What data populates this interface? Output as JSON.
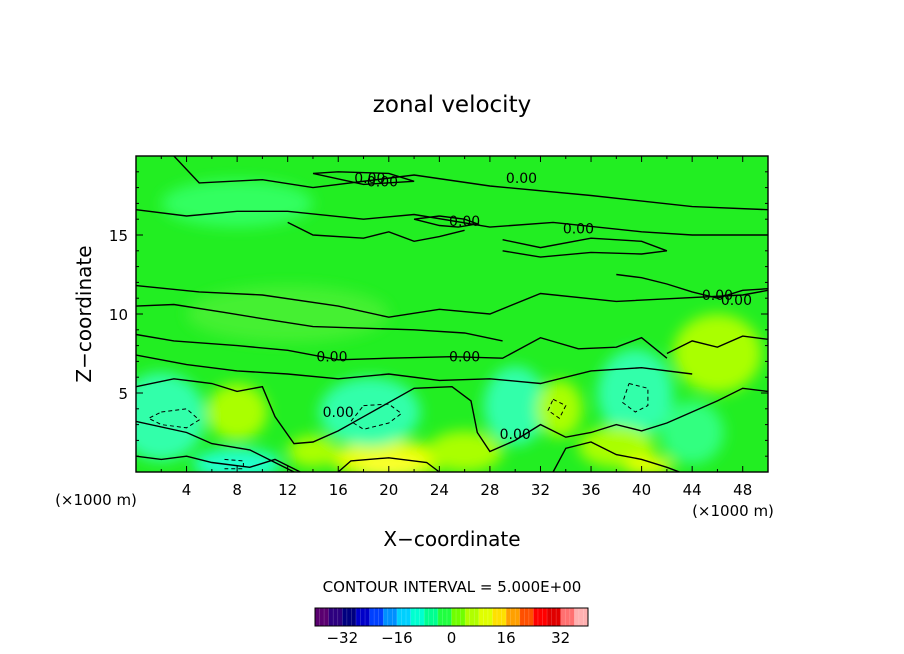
{
  "chart_data": {
    "type": "heatmap",
    "title": "zonal velocity",
    "xlabel": "X−coordinate",
    "ylabel": "Z−coordinate",
    "x_unit_left": "(×1000 m)",
    "x_unit_right": "(×1000 m)",
    "xlim": [
      0,
      50
    ],
    "ylim": [
      0,
      20
    ],
    "x_ticks": [
      4,
      8,
      12,
      16,
      20,
      24,
      28,
      32,
      36,
      40,
      44,
      48
    ],
    "y_ticks": [
      5,
      10,
      15
    ],
    "contour_interval_text": "CONTOUR INTERVAL = 5.000E+00",
    "contour_labels": [
      "0.00",
      "0.00",
      "0.00",
      "0.00",
      "0.00",
      "0.00",
      "0.00",
      "0.00",
      "0.00",
      "0.00",
      "0.00"
    ],
    "colorbar": {
      "range": [
        -40,
        40
      ],
      "tick_labels": [
        "−32",
        "−16",
        "0",
        "16",
        "32"
      ],
      "tick_values": [
        -32,
        -16,
        0,
        16,
        32
      ],
      "colors": [
        "#5a0070",
        "#2d007f",
        "#00007f",
        "#0000c8",
        "#0040ff",
        "#0090ff",
        "#00d0ff",
        "#00ffd0",
        "#00ff90",
        "#20ff40",
        "#70ff00",
        "#b0ff00",
        "#e0ff00",
        "#ffe000",
        "#ffa000",
        "#ff5000",
        "#ff0000",
        "#e00000",
        "#ff7070",
        "#ffb0b0"
      ]
    },
    "colors": {
      "background_field": "#22ee22",
      "positive": "#aaff00",
      "negative": "#33ffaa"
    },
    "grid": false
  }
}
